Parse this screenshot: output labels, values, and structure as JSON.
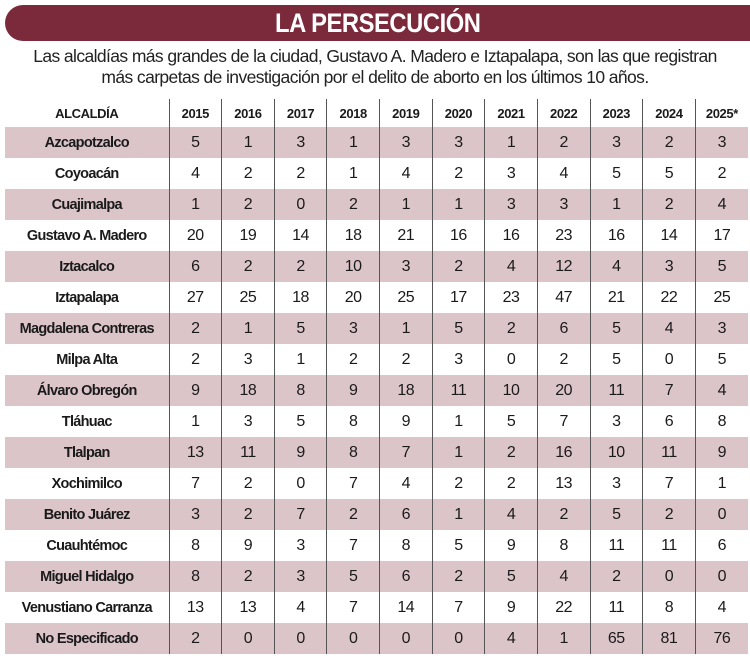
{
  "title": "LA PERSECUCIÓN",
  "subtitle_lines": [
    "Las alcaldías más grandes de la ciudad, Gustavo A. Madero e Iztapalapa, son las que registran",
    "más carpetas de investigación por el delito de aborto en los últimos 10 años."
  ],
  "colors": {
    "title_bar": "#7b2a3c",
    "row_stripe": "#dcc5c9"
  },
  "table": {
    "header": [
      "ALCALDÍA",
      "2015",
      "2016",
      "2017",
      "2018",
      "2019",
      "2020",
      "2021",
      "2022",
      "2023",
      "2024",
      "2025*"
    ],
    "rows": [
      {
        "name": "Azcapotzalco",
        "values": [
          5,
          1,
          3,
          1,
          3,
          3,
          1,
          2,
          3,
          2,
          3
        ]
      },
      {
        "name": "Coyoacán",
        "values": [
          4,
          2,
          2,
          1,
          4,
          2,
          3,
          4,
          5,
          5,
          2
        ]
      },
      {
        "name": "Cuajimalpa",
        "values": [
          1,
          2,
          0,
          2,
          1,
          1,
          3,
          3,
          1,
          2,
          4
        ]
      },
      {
        "name": "Gustavo A. Madero",
        "values": [
          20,
          19,
          14,
          18,
          21,
          16,
          16,
          23,
          16,
          14,
          17
        ]
      },
      {
        "name": "Iztacalco",
        "values": [
          6,
          2,
          2,
          10,
          3,
          2,
          4,
          12,
          4,
          3,
          5
        ]
      },
      {
        "name": "Iztapalapa",
        "values": [
          27,
          25,
          18,
          20,
          25,
          17,
          23,
          47,
          21,
          22,
          25
        ]
      },
      {
        "name": "Magdalena Contreras",
        "values": [
          2,
          1,
          5,
          3,
          1,
          5,
          2,
          6,
          5,
          4,
          3
        ]
      },
      {
        "name": "Milpa Alta",
        "values": [
          2,
          3,
          1,
          2,
          2,
          3,
          0,
          2,
          5,
          0,
          5
        ]
      },
      {
        "name": "Álvaro Obregón",
        "values": [
          9,
          18,
          8,
          9,
          18,
          11,
          10,
          20,
          11,
          7,
          4
        ]
      },
      {
        "name": "Tláhuac",
        "values": [
          1,
          3,
          5,
          8,
          9,
          1,
          5,
          7,
          3,
          6,
          8
        ]
      },
      {
        "name": "Tlalpan",
        "values": [
          13,
          11,
          9,
          8,
          7,
          1,
          2,
          16,
          10,
          11,
          9
        ]
      },
      {
        "name": "Xochimilco",
        "values": [
          7,
          2,
          0,
          7,
          4,
          2,
          2,
          13,
          3,
          7,
          1
        ]
      },
      {
        "name": "Benito Juárez",
        "values": [
          3,
          2,
          7,
          2,
          6,
          1,
          4,
          2,
          5,
          2,
          0
        ]
      },
      {
        "name": "Cuauhtémoc",
        "values": [
          8,
          9,
          3,
          7,
          8,
          5,
          9,
          8,
          11,
          11,
          6
        ]
      },
      {
        "name": "Miguel Hidalgo",
        "values": [
          8,
          2,
          3,
          5,
          6,
          2,
          5,
          4,
          2,
          0,
          0
        ]
      },
      {
        "name": "Venustiano Carranza",
        "values": [
          13,
          13,
          4,
          7,
          14,
          7,
          9,
          22,
          11,
          8,
          4
        ]
      },
      {
        "name": "No Especificado",
        "values": [
          2,
          0,
          0,
          0,
          0,
          0,
          4,
          1,
          65,
          81,
          76
        ]
      }
    ]
  }
}
